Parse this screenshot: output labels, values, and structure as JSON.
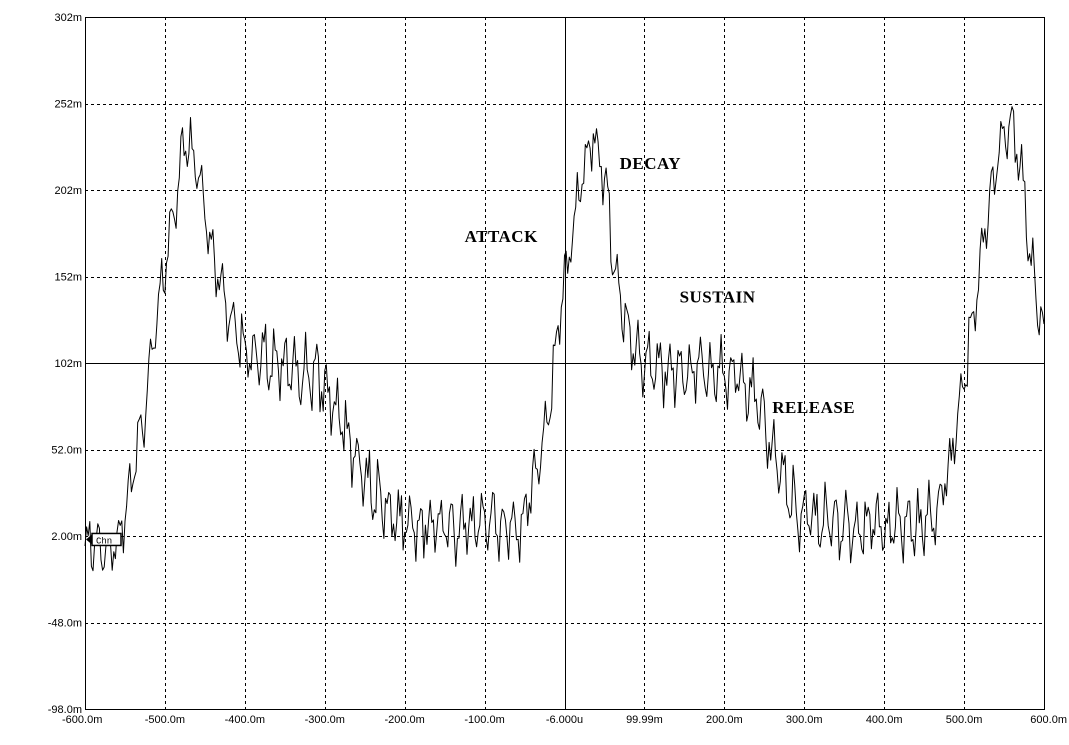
{
  "chart_data": {
    "type": "line",
    "title": "",
    "xlabel": "",
    "ylabel": "",
    "xlim": [
      -600,
      600
    ],
    "ylim": [
      -98,
      302
    ],
    "grid": true,
    "x_tick_values": [
      -600,
      -500,
      -400,
      -300,
      -200,
      -100,
      0,
      100,
      200,
      300,
      400,
      500,
      600
    ],
    "x_tick_labels": [
      "-600.0m",
      "-500.0m",
      "-400.0m",
      "-300.0m",
      "-200.0m",
      "-100.0m",
      "-6.000u",
      "99.99m",
      "200.0m",
      "300.0m",
      "400.0m",
      "500.0m",
      "600.0m"
    ],
    "y_tick_values": [
      302,
      252,
      202,
      152,
      102,
      52,
      2,
      -48,
      -98
    ],
    "y_tick_labels": [
      "302m",
      "252m",
      "202m",
      "152m",
      "102m",
      "52.0m",
      "2.00m",
      "-48.0m",
      "-98.0m"
    ],
    "solid_reference_x": 0,
    "solid_reference_y": 102,
    "annotations": [
      {
        "text": "ATTACK",
        "x": -125,
        "y": 172
      },
      {
        "text": "DECAY",
        "x": 69,
        "y": 214
      },
      {
        "text": "SUSTAIN",
        "x": 144,
        "y": 137
      },
      {
        "text": "RELEASE",
        "x": 260,
        "y": 73
      }
    ],
    "marker": {
      "text": "Chn",
      "y": 0
    },
    "series": [
      {
        "envelope_x": [
          -600,
          -560,
          -530,
          -510,
          -490,
          -475,
          -460,
          -440,
          -420,
          -400,
          -360,
          -310,
          -290,
          -250,
          -210,
          -150,
          -100,
          -60,
          -50,
          -35,
          -15,
          0,
          20,
          35,
          50,
          65,
          80,
          100,
          140,
          180,
          220,
          240,
          260,
          290,
          330,
          380,
          420,
          440,
          450,
          465,
          485,
          505,
          525,
          545,
          560,
          575,
          590,
          600
        ],
        "envelope_y": [
          -5,
          -5,
          60,
          130,
          185,
          235,
          215,
          165,
          130,
          110,
          100,
          95,
          80,
          35,
          12,
          8,
          8,
          8,
          12,
          40,
          90,
          150,
          205,
          235,
          210,
          150,
          115,
          100,
          98,
          98,
          95,
          85,
          50,
          15,
          10,
          8,
          8,
          8,
          10,
          15,
          50,
          110,
          175,
          230,
          240,
          200,
          140,
          115
        ],
        "ripple_amplitude": 18,
        "ripple_period": 13
      }
    ]
  }
}
